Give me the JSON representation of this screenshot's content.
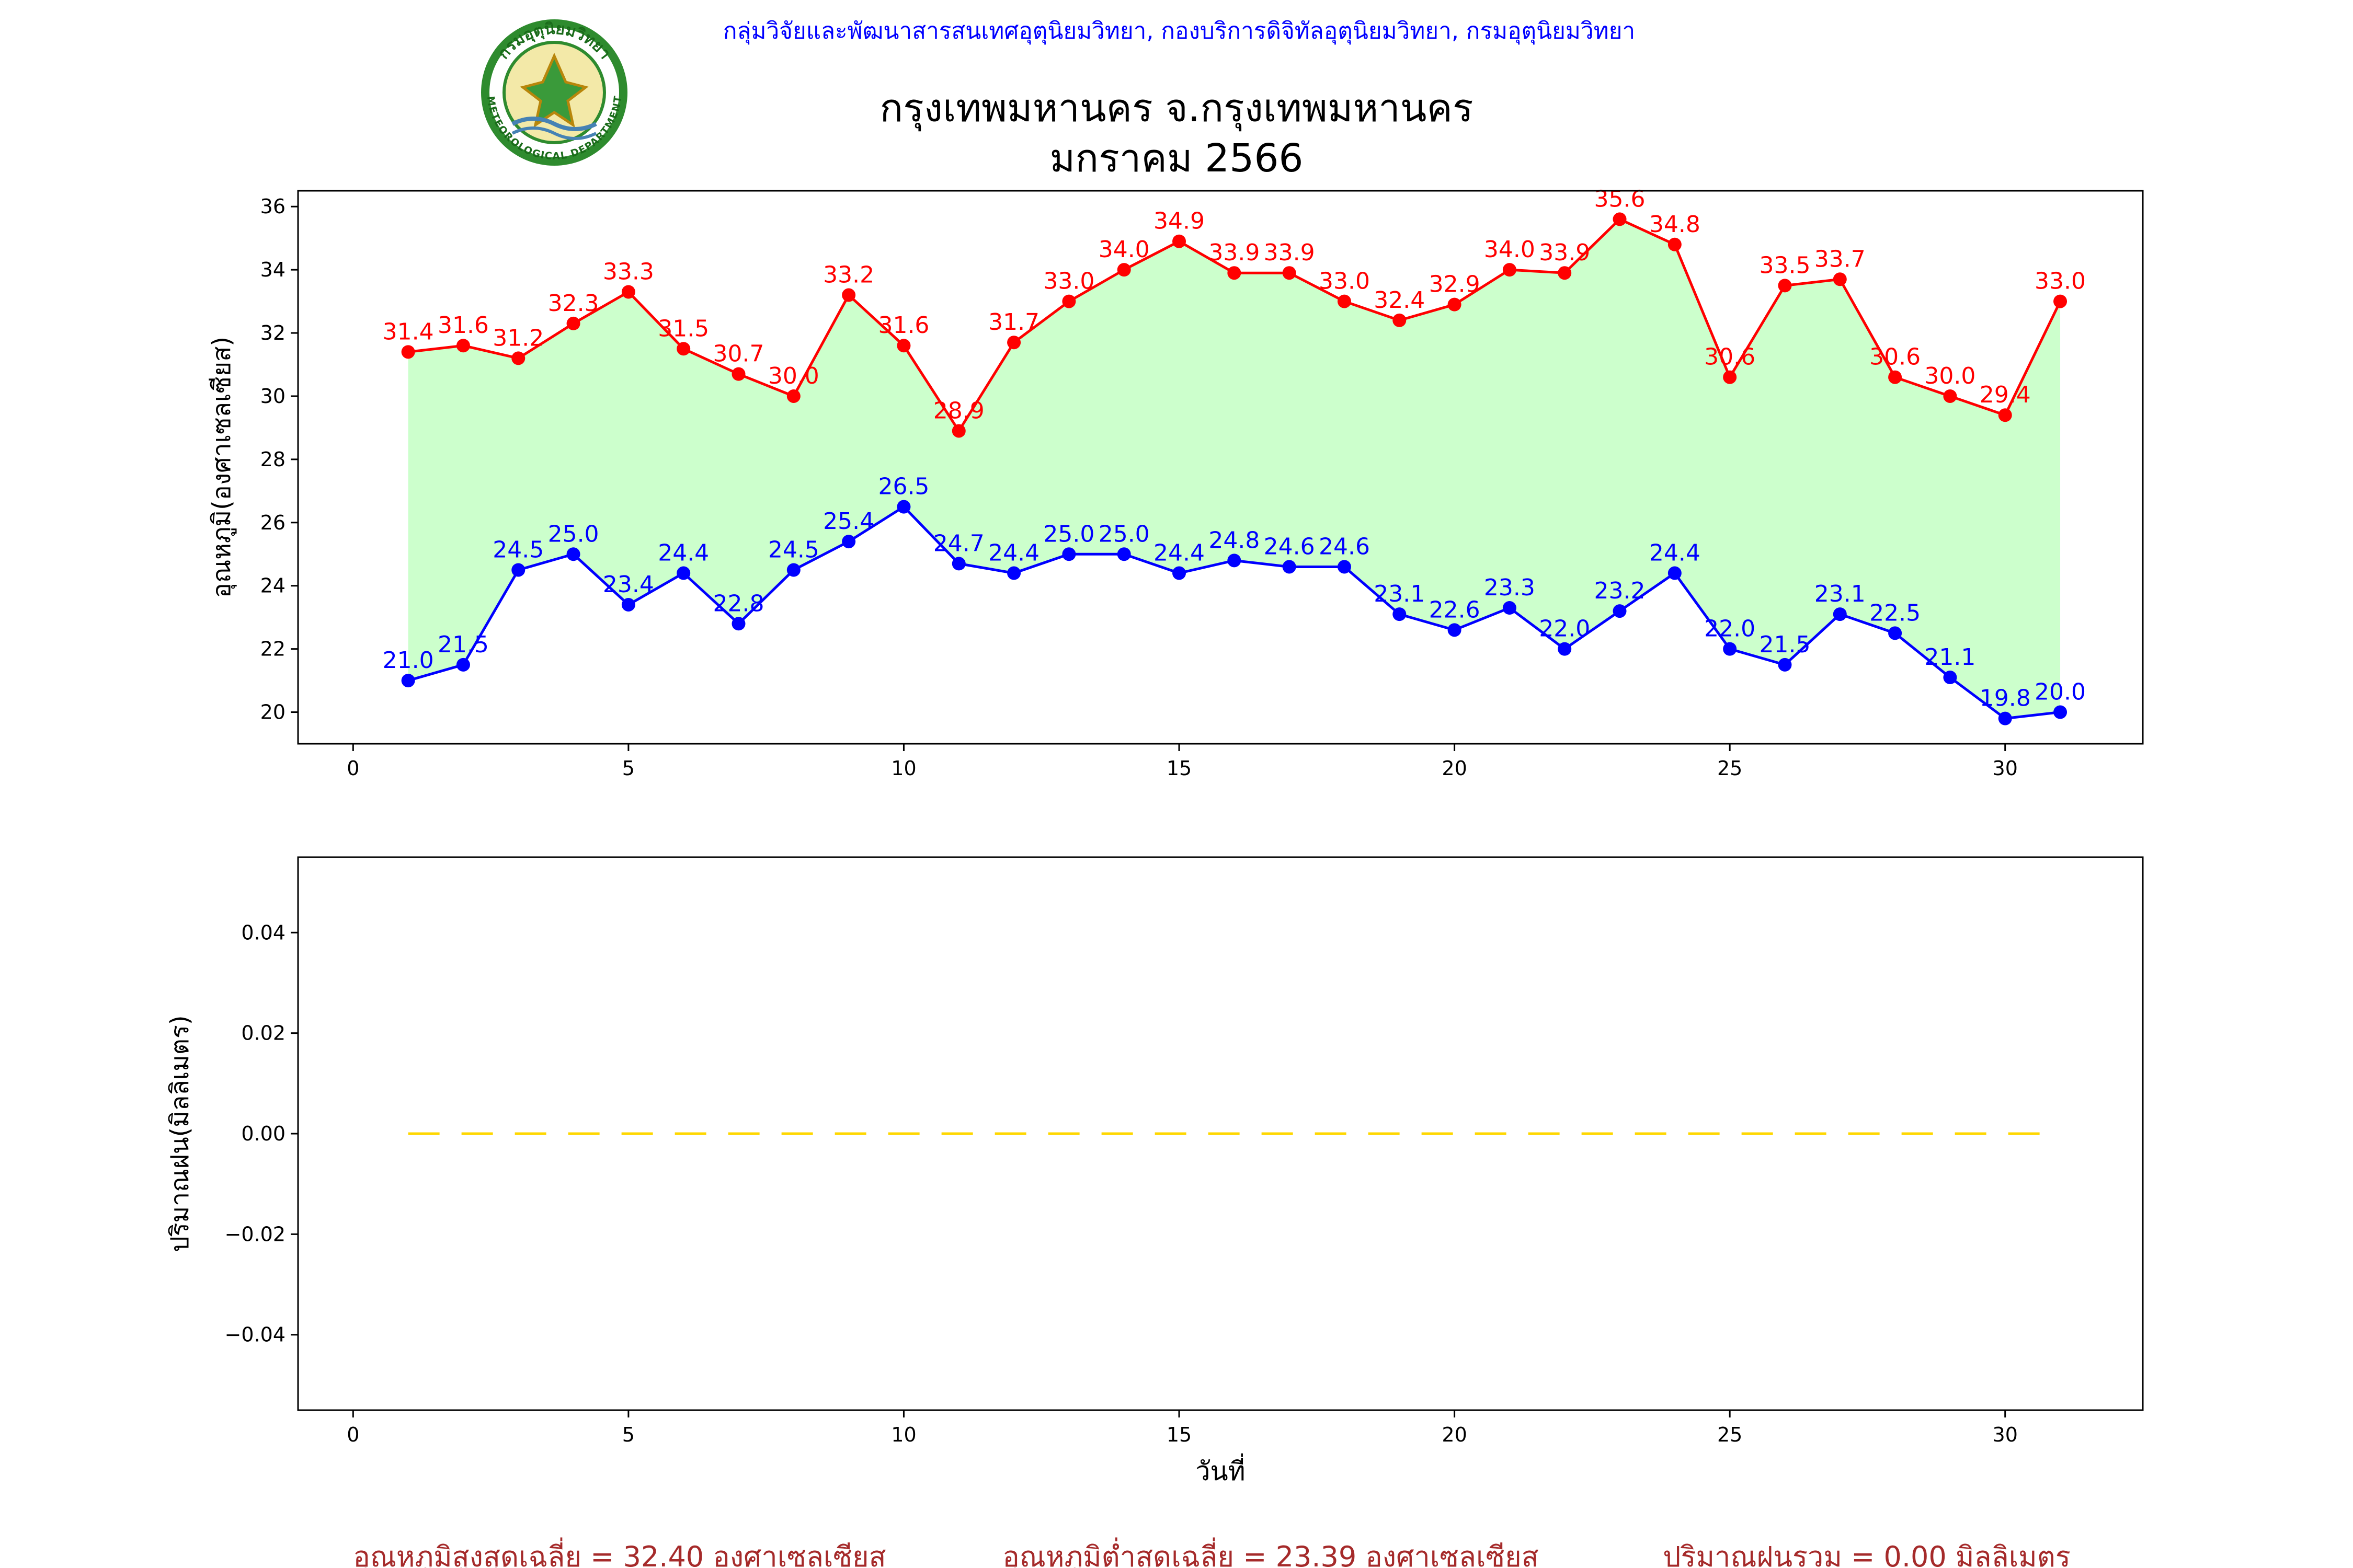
{
  "header": {
    "agency": "กลุ่มวิจัยและพัฒนาสารสนเทศอุตุนิยมวิทยา, กองบริการดิจิทัลอุตุนิยมวิทยา, กรมอุตุนิยมวิทยา",
    "title_line1": "กรุงเทพมหานคร จ.กรุงเทพมหานคร",
    "title_line2": "มกราคม 2566",
    "logo_top": "กรมอุตุนิยมวิทยา",
    "logo_bottom": "METEOROLOGICAL DEPARTMENT"
  },
  "colors": {
    "max_series": "#ff0000",
    "min_series": "#0000ff",
    "fill": "#ccffcc",
    "rain": "#ffd700",
    "agency": "#0000ff",
    "summary": "#a52a2a"
  },
  "chart_data": [
    {
      "type": "line",
      "ylabel": "อุณหภูมิ(องศาเซลเซียส)",
      "xlim": [
        -1,
        32.5
      ],
      "ylim": [
        19,
        36.5
      ],
      "xticks": [
        0,
        5,
        10,
        15,
        20,
        25,
        30
      ],
      "yticks": [
        20,
        22,
        24,
        26,
        28,
        30,
        32,
        34,
        36
      ],
      "x": [
        1,
        2,
        3,
        4,
        5,
        6,
        7,
        8,
        9,
        10,
        11,
        12,
        13,
        14,
        15,
        16,
        17,
        18,
        19,
        20,
        21,
        22,
        23,
        24,
        25,
        26,
        27,
        28,
        29,
        30,
        31
      ],
      "series": [
        {
          "key": "max",
          "values": [
            31.4,
            31.6,
            31.2,
            32.3,
            33.3,
            31.5,
            30.7,
            30.0,
            33.2,
            31.6,
            28.9,
            31.7,
            33.0,
            34.0,
            34.9,
            33.9,
            33.9,
            33.0,
            32.4,
            32.9,
            34.0,
            33.9,
            35.6,
            34.8,
            30.6,
            33.5,
            33.7,
            30.6,
            30.0,
            29.4,
            33.0
          ]
        },
        {
          "key": "min",
          "values": [
            21.0,
            21.5,
            24.5,
            25.0,
            23.4,
            24.4,
            22.8,
            24.5,
            25.4,
            26.5,
            24.7,
            24.4,
            25.0,
            25.0,
            24.4,
            24.8,
            24.6,
            24.6,
            23.1,
            22.6,
            23.3,
            22.0,
            23.2,
            24.4,
            22.0,
            21.5,
            23.1,
            22.5,
            21.1,
            19.8,
            20.0
          ]
        }
      ],
      "fill_between": true
    },
    {
      "type": "line",
      "xlabel": "วันที่",
      "ylabel": "ปริมาณฝน(มิลลิเมตร)",
      "xlim": [
        -1,
        32.5
      ],
      "ylim": [
        -0.055,
        0.055
      ],
      "xticks": [
        0,
        5,
        10,
        15,
        20,
        25,
        30
      ],
      "yticks": [
        -0.04,
        -0.02,
        0.0,
        0.02,
        0.04
      ],
      "ytick_labels": [
        "−0.04",
        "−0.02",
        "0.00",
        "0.02",
        "0.04"
      ],
      "x": [
        1,
        2,
        3,
        4,
        5,
        6,
        7,
        8,
        9,
        10,
        11,
        12,
        13,
        14,
        15,
        16,
        17,
        18,
        19,
        20,
        21,
        22,
        23,
        24,
        25,
        26,
        27,
        28,
        29,
        30,
        31
      ],
      "series": [
        {
          "key": "rain",
          "values": [
            0,
            0,
            0,
            0,
            0,
            0,
            0,
            0,
            0,
            0,
            0,
            0,
            0,
            0,
            0,
            0,
            0,
            0,
            0,
            0,
            0,
            0,
            0,
            0,
            0,
            0,
            0,
            0,
            0,
            0,
            0
          ]
        }
      ]
    }
  ],
  "summary": {
    "avg_max": "อุณหภูมิสูงสุดเฉลี่ย = 32.40 องศาเซลเซียส",
    "avg_min": "อุณหภูมิต่ำสุดเฉลี่ย = 23.39 องศาเซลเซียส",
    "rain_total": "ปริมาณฝนรวม = 0.00 มิลลิเมตร"
  }
}
